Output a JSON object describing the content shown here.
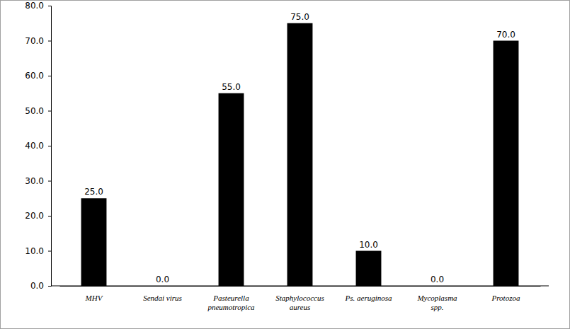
{
  "chart_data": {
    "type": "bar",
    "categories": [
      "MHV",
      "Sendai virus",
      "Pasteurella\npneumotropica",
      "Staphylococcus\naureus",
      "Ps. aeruginosa",
      "Mycoplasma\nspp.",
      "Protozoa"
    ],
    "values": [
      25,
      0,
      55,
      75,
      10,
      0,
      70
    ],
    "value_labels": [
      "25.0",
      "0.0",
      "55.0",
      "75.0",
      "10.0",
      "0.0",
      "70.0"
    ],
    "color": "#000000",
    "ylim": [
      0,
      80
    ],
    "yticks": [
      {
        "value": 0,
        "label": "0.0"
      },
      {
        "value": 10,
        "label": "10.0"
      },
      {
        "value": 20,
        "label": "20.0"
      },
      {
        "value": 30,
        "label": "30.0"
      },
      {
        "value": 40,
        "label": "40.0"
      },
      {
        "value": 50,
        "label": "50.0"
      },
      {
        "value": 60,
        "label": "60.0"
      },
      {
        "value": 70,
        "label": "70.0"
      },
      {
        "value": 80,
        "label": "80.0"
      }
    ],
    "grid": false,
    "data_labels": true
  }
}
